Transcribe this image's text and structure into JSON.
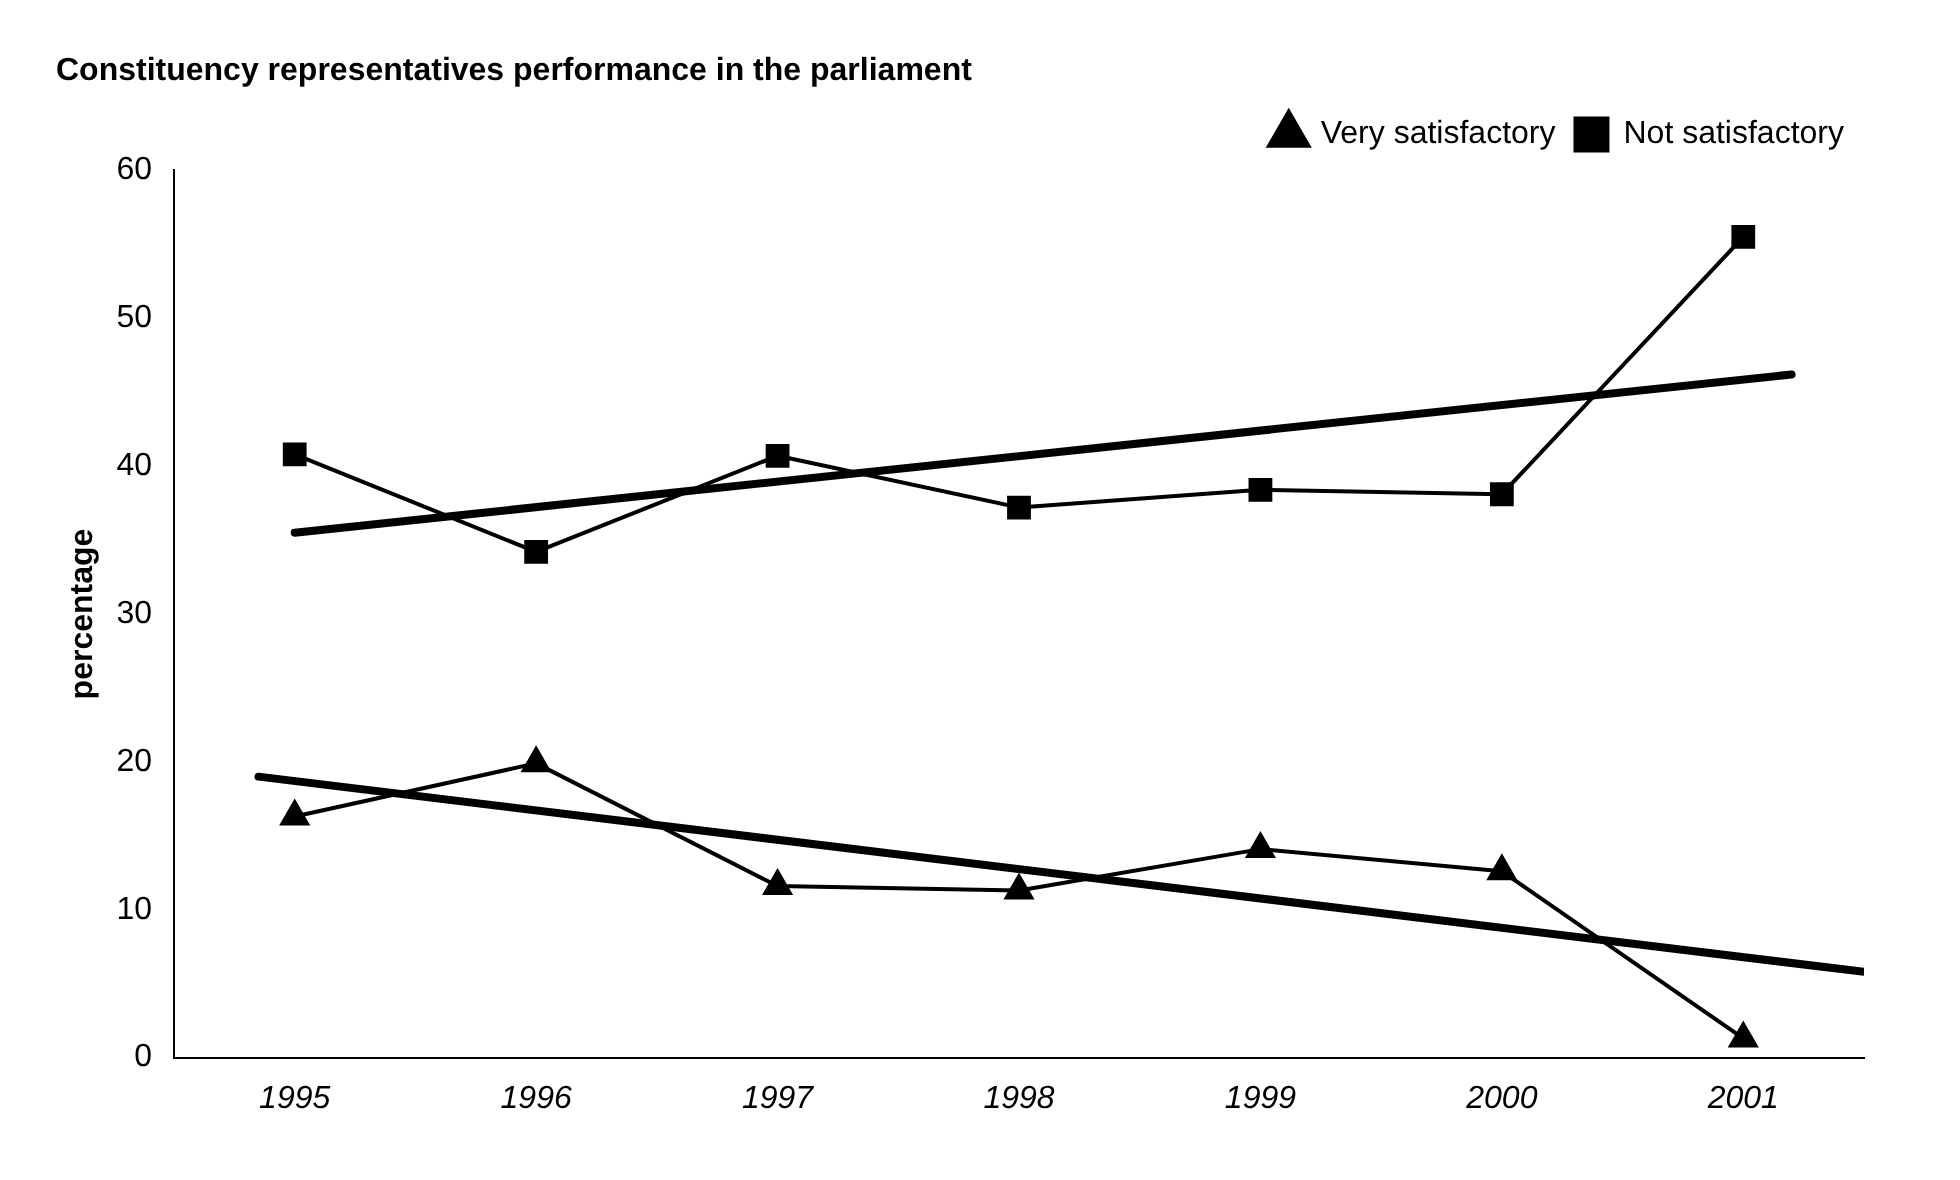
{
  "chart_data": {
    "type": "line",
    "title": "Constituency representatives performance in the parliament",
    "ylabel": "percentage",
    "x": [
      1995,
      1996,
      1997,
      1998,
      1999,
      2000,
      2001
    ],
    "xlim": [
      1994.5,
      2001.5
    ],
    "xticks": [
      1995,
      1996,
      1997,
      1998,
      1999,
      2000,
      2001
    ],
    "ylim": [
      0,
      60
    ],
    "yticks": [
      0,
      10,
      20,
      30,
      40,
      50,
      60
    ],
    "grid": false,
    "legend": "top right",
    "series": [
      {
        "name": "Very satisfactory",
        "color": "#000000",
        "marker": "triangle",
        "values": [
          16.3,
          19.9,
          11.6,
          11.3,
          14.1,
          12.6,
          1.3
        ]
      },
      {
        "name": "Not satisfactory",
        "color": "#000000",
        "marker": "square",
        "values": [
          40.8,
          34.2,
          40.7,
          37.2,
          38.4,
          38.1,
          55.5
        ]
      },
      {
        "type": "line",
        "color": "#000000",
        "marker": "none",
        "x": [
          1994.85,
          2001.5
        ],
        "values": [
          19.0,
          5.8
        ]
      },
      {
        "type": "line",
        "color": "#000000",
        "marker": "none",
        "x": [
          1995,
          2001.2
        ],
        "values": [
          35.5,
          46.2
        ]
      }
    ]
  }
}
